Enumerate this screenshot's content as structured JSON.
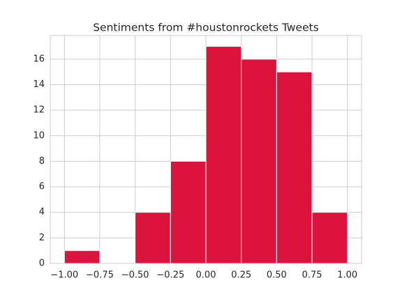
{
  "chart_data": {
    "type": "histogram",
    "title": "Sentiments from #houstonrockets Tweets",
    "bins": [
      -1,
      -0.75,
      -0.5,
      -0.25,
      0,
      0.25,
      0.5,
      0.75,
      1
    ],
    "values": [
      1,
      0,
      4,
      8,
      17,
      16,
      15,
      4
    ],
    "color": "#dc143c",
    "xlim": [
      -1.1,
      1.1
    ],
    "ylim": [
      0,
      17.85
    ],
    "xticks": [
      {
        "value": -1,
        "label": "−1.00"
      },
      {
        "value": -0.75,
        "label": "−0.75"
      },
      {
        "value": -0.5,
        "label": "−0.50"
      },
      {
        "value": -0.25,
        "label": "−0.25"
      },
      {
        "value": 0,
        "label": "0.00"
      },
      {
        "value": 0.25,
        "label": "0.25"
      },
      {
        "value": 0.5,
        "label": "0.50"
      },
      {
        "value": 0.75,
        "label": "0.75"
      },
      {
        "value": 1,
        "label": "1.00"
      }
    ],
    "yticks": [
      0,
      2,
      4,
      6,
      8,
      10,
      12,
      14,
      16
    ],
    "grid": true
  }
}
